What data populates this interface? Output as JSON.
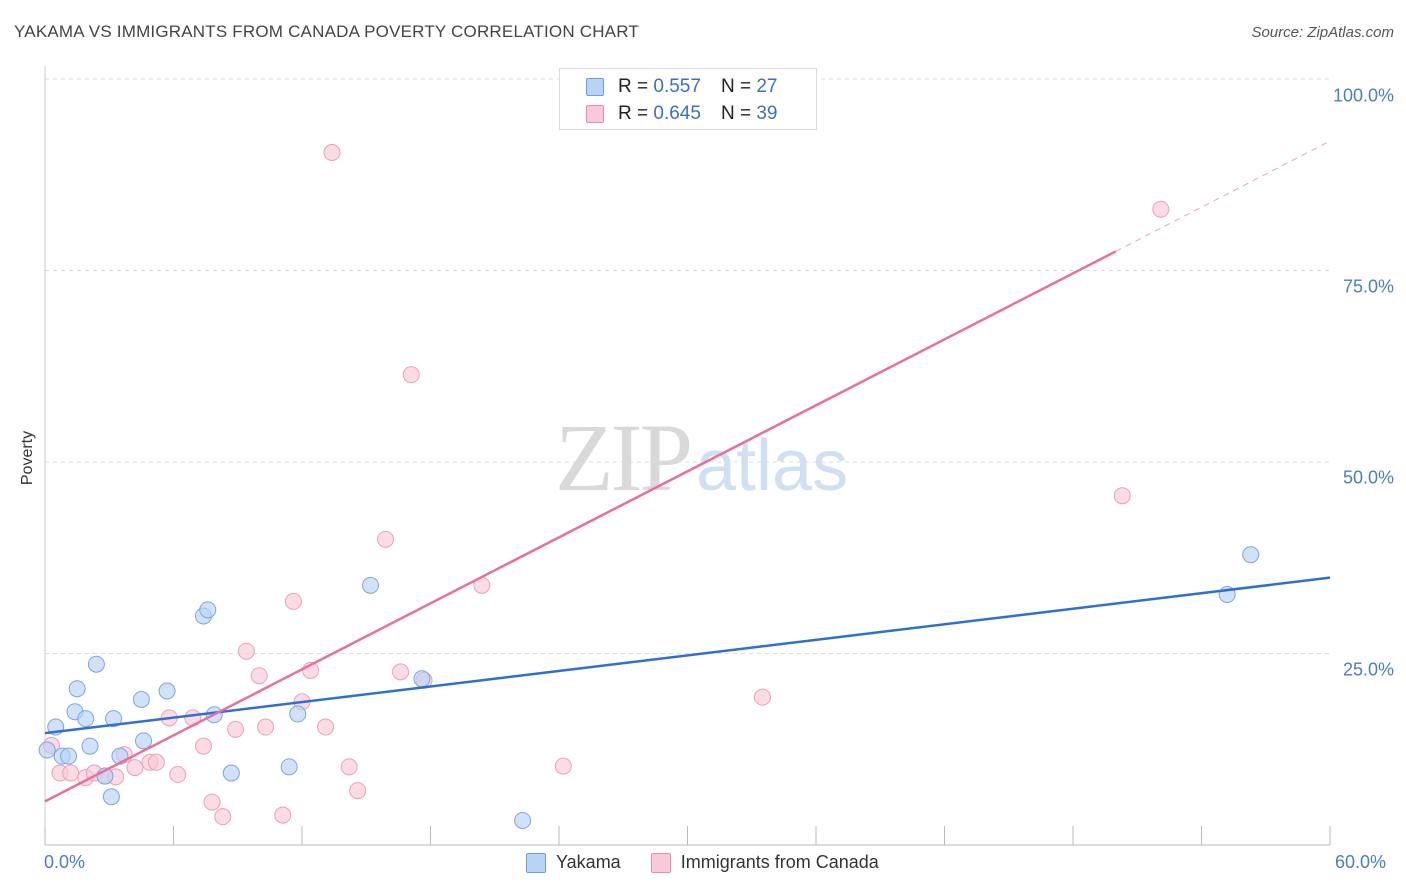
{
  "title": "YAKAMA VS IMMIGRANTS FROM CANADA POVERTY CORRELATION CHART",
  "source": "Source: ZipAtlas.com",
  "watermark": {
    "zip": "ZIP",
    "atlas": "atlas"
  },
  "legend": {
    "r_label": "R =",
    "n_label": "N =",
    "rows": [
      {
        "r": "0.557",
        "n": "27"
      },
      {
        "r": "0.645",
        "n": "39"
      }
    ]
  },
  "chart_data": {
    "type": "scatter",
    "title": "YAKAMA VS IMMIGRANTS FROM CANADA POVERTY CORRELATION CHART",
    "xlabel": "",
    "ylabel": "Poverty",
    "xlim": [
      0,
      60
    ],
    "ylim": [
      0,
      100
    ],
    "x_tick_labels": [
      "0.0%",
      "60.0%"
    ],
    "y_tick_labels": [
      "25.0%",
      "50.0%",
      "75.0%",
      "100.0%"
    ],
    "y_ticks": [
      25,
      50,
      75,
      100
    ],
    "grid": "horizontal dashed",
    "legend_position": "top-center",
    "colors": {
      "yakama": "#2f6fce",
      "canada": "#e8709a",
      "yakama_fill": "#b9d3f5",
      "canada_fill": "#f9c9d7"
    },
    "series": [
      {
        "name": "Yakama",
        "points": [
          [
            0.1,
            12.4
          ],
          [
            0.5,
            15.4
          ],
          [
            0.8,
            11.6
          ],
          [
            1.1,
            11.6
          ],
          [
            1.4,
            17.4
          ],
          [
            1.5,
            20.4
          ],
          [
            1.9,
            16.5
          ],
          [
            2.1,
            12.9
          ],
          [
            2.4,
            23.6
          ],
          [
            2.8,
            9.0
          ],
          [
            3.1,
            6.3
          ],
          [
            3.2,
            16.5
          ],
          [
            3.5,
            11.6
          ],
          [
            4.5,
            19.0
          ],
          [
            4.6,
            13.6
          ],
          [
            5.7,
            20.1
          ],
          [
            7.4,
            29.9
          ],
          [
            7.6,
            30.7
          ],
          [
            7.9,
            17.0
          ],
          [
            8.7,
            9.4
          ],
          [
            11.4,
            10.2
          ],
          [
            11.8,
            17.1
          ],
          [
            15.2,
            33.9
          ],
          [
            17.6,
            21.7
          ],
          [
            22.3,
            3.2
          ],
          [
            55.2,
            32.7
          ],
          [
            56.3,
            37.9
          ]
        ],
        "trend": [
          [
            0,
            14.6
          ],
          [
            60,
            34.9
          ]
        ]
      },
      {
        "name": "Immigrants from Canada",
        "points": [
          [
            0.3,
            13.0
          ],
          [
            0.7,
            9.4
          ],
          [
            1.2,
            9.4
          ],
          [
            1.9,
            8.8
          ],
          [
            2.3,
            9.4
          ],
          [
            2.8,
            9.0
          ],
          [
            3.3,
            8.9
          ],
          [
            3.7,
            11.8
          ],
          [
            4.2,
            10.1
          ],
          [
            4.9,
            10.8
          ],
          [
            5.2,
            10.8
          ],
          [
            5.8,
            16.6
          ],
          [
            6.2,
            9.2
          ],
          [
            6.9,
            16.6
          ],
          [
            7.4,
            12.9
          ],
          [
            7.8,
            5.6
          ],
          [
            8.3,
            3.7
          ],
          [
            8.9,
            15.1
          ],
          [
            9.4,
            25.3
          ],
          [
            10.0,
            22.1
          ],
          [
            10.3,
            15.4
          ],
          [
            11.1,
            3.9
          ],
          [
            11.6,
            31.8
          ],
          [
            12.0,
            18.7
          ],
          [
            12.4,
            22.8
          ],
          [
            13.1,
            15.4
          ],
          [
            13.4,
            90.4
          ],
          [
            14.2,
            10.2
          ],
          [
            14.6,
            7.1
          ],
          [
            15.9,
            39.9
          ],
          [
            16.6,
            22.6
          ],
          [
            17.1,
            61.4
          ],
          [
            17.7,
            21.5
          ],
          [
            20.4,
            33.9
          ],
          [
            24.2,
            10.3
          ],
          [
            33.5,
            19.3
          ],
          [
            33.6,
            99.7
          ],
          [
            50.3,
            45.6
          ],
          [
            52.1,
            83.0
          ]
        ],
        "trend": [
          [
            0,
            5.7
          ],
          [
            50,
            77.5
          ]
        ],
        "trend_extension": [
          [
            50,
            77.5
          ],
          [
            60,
            91.9
          ]
        ]
      }
    ]
  }
}
